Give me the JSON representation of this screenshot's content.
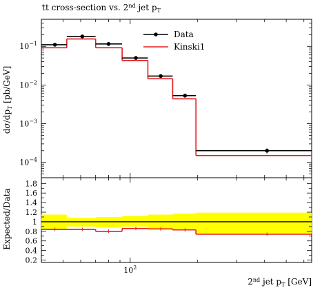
{
  "chart_data": [
    {
      "type": "step",
      "title": "tt̄ cross-section vs. 2nd jet pT",
      "ylabel": "dσ/dpT [pb/GeV]",
      "xlabel": "2nd jet pT [GeV]",
      "xscale": "log",
      "yscale": "log",
      "xlim": [
        40,
        650
      ],
      "ylim": [
        4e-05,
        0.5
      ],
      "x_tick_labels": [
        "10^2"
      ],
      "y_tick_labels": [
        "10^-4",
        "10^-3",
        "10^-2",
        "10^-1"
      ],
      "legend_position": "top-right",
      "bin_edges": [
        40,
        52,
        70,
        92,
        120,
        155,
        197,
        650
      ],
      "series": [
        {
          "name": "Data",
          "style": "points",
          "color": "#000000",
          "x": [
            46,
            61,
            80,
            106,
            137,
            176,
            410
          ],
          "values": [
            0.11,
            0.18,
            0.115,
            0.05,
            0.017,
            0.0053,
            0.0002
          ],
          "errors": [
            0.007,
            0.01,
            0.007,
            0.003,
            0.001,
            0.0004,
            3e-05
          ]
        },
        {
          "name": "Kinski1",
          "style": "histogram",
          "color": "#e41a1c",
          "values": [
            0.092,
            0.155,
            0.092,
            0.043,
            0.0145,
            0.0044,
            0.00015
          ]
        }
      ]
    },
    {
      "type": "ratio",
      "ylabel": "Expected/Data",
      "xscale": "log",
      "ylim": [
        0.15,
        1.92
      ],
      "y_tick_labels": [
        "0.2",
        "0.4",
        "0.6",
        "0.8",
        "1",
        "1.2",
        "1.4",
        "1.6",
        "1.8"
      ],
      "band_color": "#ffff00",
      "reference_line": 1.0,
      "band": {
        "upper": [
          1.15,
          1.08,
          1.1,
          1.12,
          1.15,
          1.17,
          1.19
        ],
        "lower": [
          0.85,
          0.9,
          0.88,
          0.9,
          0.86,
          0.85,
          0.76
        ]
      },
      "ratio_values": [
        0.84,
        0.84,
        0.8,
        0.86,
        0.85,
        0.83,
        0.74
      ]
    }
  ]
}
